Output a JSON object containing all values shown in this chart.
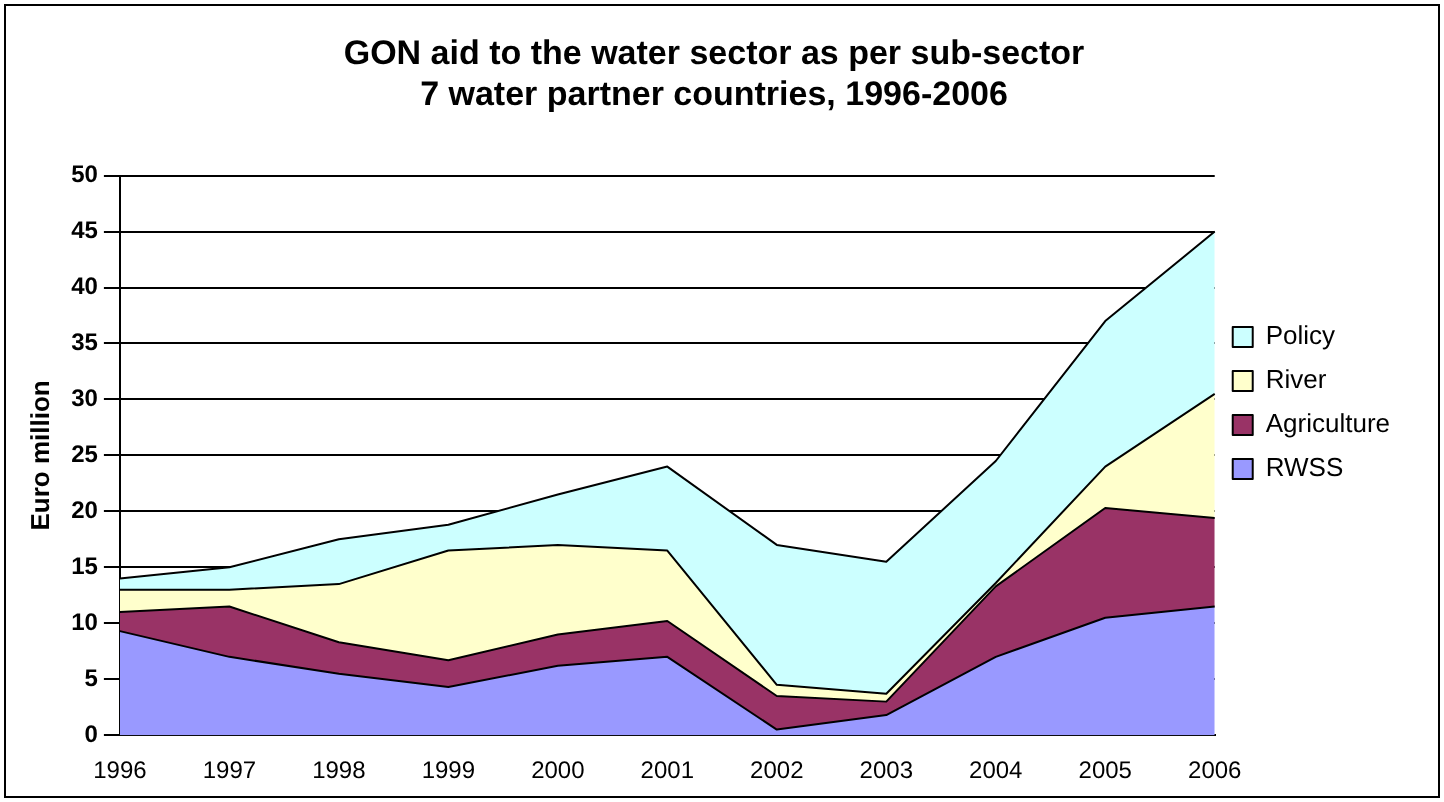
{
  "chart_data": {
    "type": "area",
    "title": [
      "GON aid to the water sector as per sub-sector",
      "7 water partner countries, 1996-2006"
    ],
    "ylabel": "Euro million",
    "categories": [
      "1996",
      "1997",
      "1998",
      "1999",
      "2000",
      "2001",
      "2002",
      "2003",
      "2004",
      "2005",
      "2006"
    ],
    "stacked": true,
    "ylim": [
      0,
      50
    ],
    "yticks": [
      0,
      5,
      10,
      15,
      20,
      25,
      30,
      35,
      40,
      45,
      50
    ],
    "grid": "y",
    "legend": "right",
    "series": [
      {
        "name": "RWSS",
        "color": "#9999ff",
        "values": [
          9.3,
          7,
          5.5,
          4.3,
          6.2,
          7,
          0.5,
          1.8,
          7,
          10.5,
          11.5
        ]
      },
      {
        "name": "Agriculture",
        "color": "#993366",
        "values": [
          1.7,
          4.5,
          2.8,
          2.4,
          2.8,
          3.2,
          3,
          1.2,
          6.3,
          9.8,
          7.9
        ]
      },
      {
        "name": "River",
        "color": "#ffffcc",
        "values": [
          2,
          1.5,
          5.2,
          9.8,
          8,
          6.3,
          1,
          0.7,
          0.3,
          3.7,
          11.1
        ]
      },
      {
        "name": "Policy",
        "color": "#ccffff",
        "values": [
          1,
          2,
          4,
          2.3,
          4.5,
          7.5,
          12.5,
          11.8,
          10.9,
          13,
          14.5
        ]
      }
    ]
  }
}
